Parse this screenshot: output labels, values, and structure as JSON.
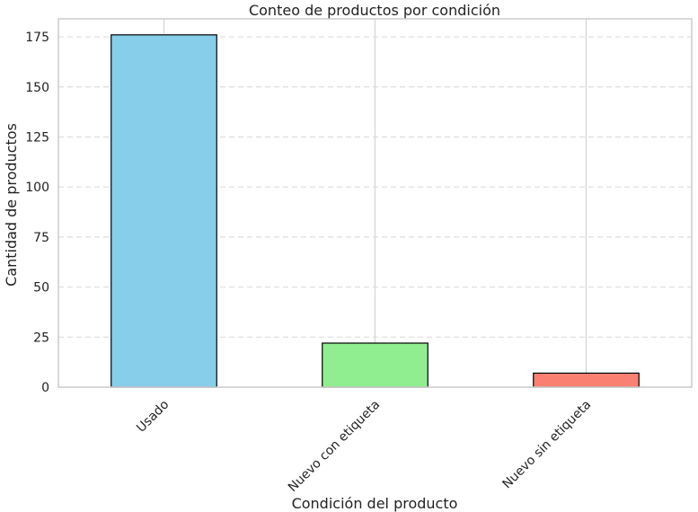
{
  "chart_data": {
    "type": "bar",
    "title": "Conteo de productos por condición",
    "xlabel": "Condición del producto",
    "ylabel": "Cantidad de productos",
    "categories": [
      "Usado",
      "Nuevo con etiqueta",
      "Nuevo sin etiqueta"
    ],
    "values": [
      176,
      22,
      7
    ],
    "colors": [
      "#87ceeb",
      "#90ee90",
      "#fa8072"
    ],
    "ylim": [
      0,
      184
    ],
    "yticks": [
      0,
      25,
      50,
      75,
      100,
      125,
      150,
      175
    ],
    "grid": true,
    "legend": "none"
  }
}
